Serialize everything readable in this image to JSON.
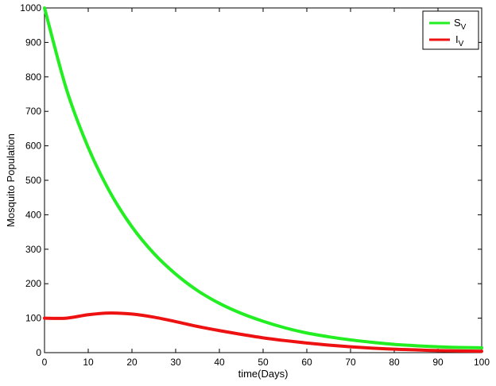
{
  "chart_data": {
    "type": "line",
    "title": "",
    "xlabel": "time(Days)",
    "ylabel": "Mosquito Population",
    "xlim": [
      0,
      100
    ],
    "ylim": [
      0,
      1000
    ],
    "xticks": [
      "0",
      "10",
      "20",
      "30",
      "40",
      "50",
      "60",
      "70",
      "80",
      "90",
      "100"
    ],
    "yticks": [
      "0",
      "100",
      "200",
      "300",
      "400",
      "500",
      "600",
      "700",
      "800",
      "900",
      "1000"
    ],
    "grid": false,
    "legend_position": "top-right",
    "x": [
      0,
      5,
      10,
      15,
      20,
      25,
      30,
      35,
      40,
      45,
      50,
      55,
      60,
      65,
      70,
      75,
      80,
      85,
      90,
      95,
      100
    ],
    "series": [
      {
        "name_main": "S",
        "name_sub": "V",
        "color": "#22ee22",
        "values": [
          1000,
          765,
          595,
          465,
          365,
          288,
          228,
          180,
          143,
          114,
          91,
          72,
          57,
          46,
          37,
          30,
          24,
          20,
          17,
          15,
          14
        ]
      },
      {
        "name_main": "I",
        "name_sub": "V",
        "color": "#ee1111",
        "values": [
          100,
          100,
          110,
          115,
          112,
          103,
          90,
          76,
          64,
          53,
          43,
          35,
          28,
          22,
          17,
          13,
          10,
          8,
          6,
          5,
          4
        ]
      }
    ]
  }
}
